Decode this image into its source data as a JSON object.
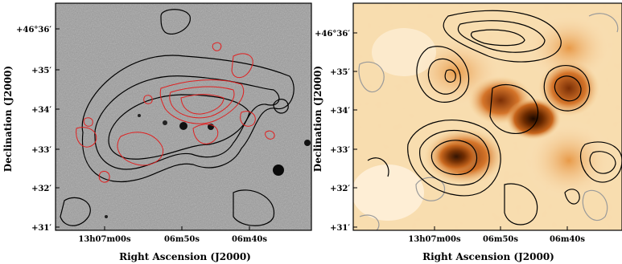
{
  "panels": [
    {
      "id": "optical-red",
      "background": "grayscale-optical",
      "contour_colors": [
        "#000000",
        "#e02020"
      ],
      "y_ticks": [
        "+46°36′",
        "+35′",
        "+34′",
        "+33′",
        "+32′",
        "+31′"
      ],
      "x_ticks": [
        "13h07m00s",
        "06m50s",
        "06m40s"
      ],
      "xlabel": "Right Ascension (J2000)",
      "ylabel": "Declination (J2000)"
    },
    {
      "id": "heatmap",
      "background": "orange-heat",
      "contour_colors": [
        "#000000",
        "#9a9a9a"
      ],
      "y_ticks": [
        "+46°36′",
        "+35′",
        "+34′",
        "+33′",
        "+32′",
        "+31′"
      ],
      "x_ticks": [
        "13h07m00s",
        "06m50s",
        "06m40s"
      ],
      "xlabel": "Right Ascension (J2000)",
      "ylabel": "Declination (J2000)"
    }
  ]
}
